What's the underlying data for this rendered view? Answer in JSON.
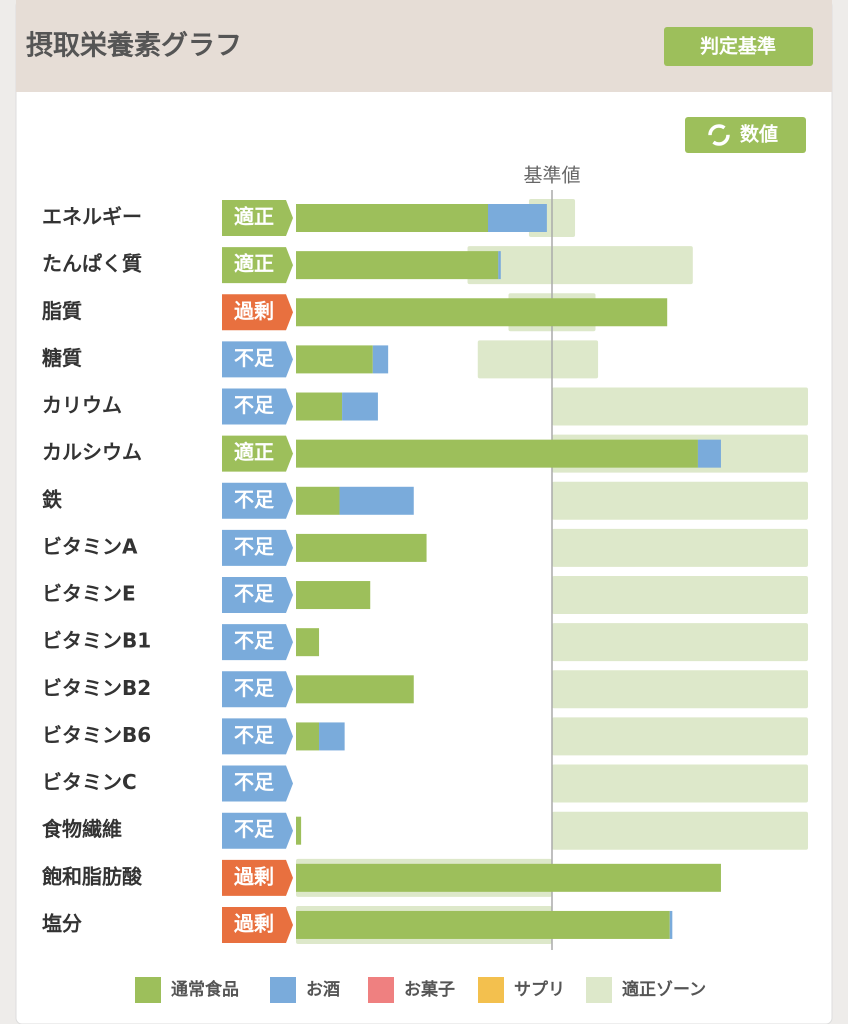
{
  "title": "摂取栄養素グラフ",
  "criteria_button": "判定基準",
  "value_button": "数値",
  "chart_data": {
    "type": "hbar-stacked",
    "reference_label": "基準値",
    "reference_value": 100,
    "xlim": [
      0,
      200
    ],
    "categories": [
      "エネルギー",
      "たんぱく質",
      "脂質",
      "糖質",
      "カリウム",
      "カルシウム",
      "鉄",
      "ビタミンA",
      "ビタミンE",
      "ビタミンB1",
      "ビタミンB2",
      "ビタミンB6",
      "ビタミンC",
      "食物繊維",
      "飽和脂肪酸",
      "塩分"
    ],
    "status": [
      "適正",
      "適正",
      "過剰",
      "不足",
      "不足",
      "適正",
      "不足",
      "不足",
      "不足",
      "不足",
      "不足",
      "不足",
      "不足",
      "不足",
      "過剰",
      "過剰"
    ],
    "status_colors": [
      "#9dbf5b",
      "#9dbf5b",
      "#e8703f",
      "#7aabdb",
      "#7aabdb",
      "#9dbf5b",
      "#7aabdb",
      "#7aabdb",
      "#7aabdb",
      "#7aabdb",
      "#7aabdb",
      "#7aabdb",
      "#7aabdb",
      "#7aabdb",
      "#e8703f",
      "#e8703f"
    ],
    "series": [
      {
        "name": "通常食品",
        "color": "#9dbf5b",
        "values": [
          75,
          79,
          145,
          30,
          18,
          157,
          17,
          51,
          29,
          9,
          46,
          9,
          0,
          2,
          166,
          146
        ]
      },
      {
        "name": "お酒",
        "color": "#7aabdb",
        "values": [
          23,
          1,
          0,
          6,
          14,
          9,
          29,
          0,
          0,
          0,
          0,
          10,
          0,
          0,
          0,
          1
        ]
      },
      {
        "name": "お菓子",
        "color": "#ef8080",
        "values": [
          0,
          0,
          0,
          0,
          0,
          0,
          0,
          0,
          0,
          0,
          0,
          0,
          0,
          0,
          0,
          0
        ]
      },
      {
        "name": "サプリ",
        "color": "#f3c04e",
        "values": [
          0,
          0,
          0,
          0,
          0,
          0,
          0,
          0,
          0,
          0,
          0,
          0,
          0,
          0,
          0,
          0
        ]
      }
    ],
    "zone_label": "適正ゾーン",
    "zone_color": "#dde8ca",
    "zones": [
      [
        91,
        109
      ],
      [
        67,
        155
      ],
      [
        83,
        117
      ],
      [
        71,
        118
      ],
      [
        100,
        200
      ],
      [
        100,
        200
      ],
      [
        100,
        200
      ],
      [
        100,
        200
      ],
      [
        100,
        200
      ],
      [
        100,
        200
      ],
      [
        100,
        200
      ],
      [
        100,
        200
      ],
      [
        100,
        200
      ],
      [
        100,
        200
      ],
      [
        0,
        100
      ],
      [
        0,
        100
      ]
    ]
  }
}
